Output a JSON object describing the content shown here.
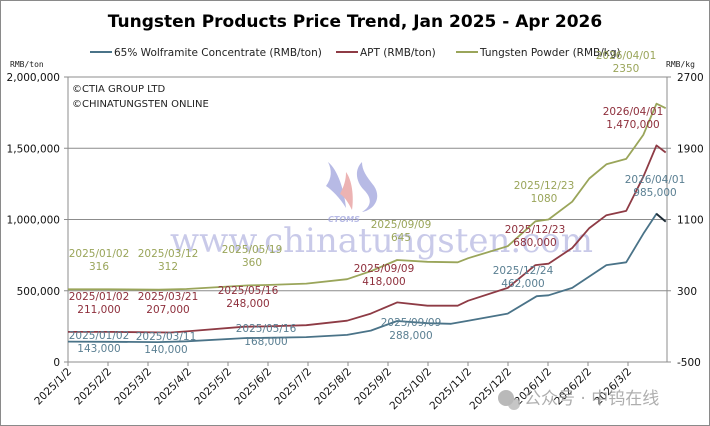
{
  "chart_data": {
    "type": "line",
    "title": "Tungsten Products Price Trend, Jan 2025 - Apr 2026",
    "left_axis": {
      "label": "RMB/ton",
      "ylim": [
        0,
        2000000
      ],
      "ticks": [
        "2,000,000",
        "1,500,000",
        "1,000,000",
        "500,000",
        "0"
      ]
    },
    "right_axis": {
      "label": "RMB/kg",
      "ylim": [
        -500,
        2700
      ],
      "ticks": [
        "2700",
        "1900",
        "1100",
        "300",
        "-500"
      ]
    },
    "x_ticks": [
      "2025/1/2",
      "2025/2/2",
      "2025/3/2",
      "2025/4/2",
      "2025/5/2",
      "2025/6/2",
      "2025/7/2",
      "2025/8/2",
      "2025/9/2",
      "2025/10/2",
      "2025/11/2",
      "2025/12/2",
      "2026/1/2",
      "2026/2/2",
      "2026/3/2"
    ],
    "grid": true,
    "legend_position": "top",
    "legend": [
      {
        "name": "65% Wolframite Concentrate (RMB/ton)",
        "color": "#4a7388",
        "axis": "left"
      },
      {
        "name": "APT (RMB/ton)",
        "color": "#8e3b45",
        "axis": "left"
      },
      {
        "name": "Tungsten Powder (RMB/kg)",
        "color": "#9aa55a",
        "axis": "right"
      }
    ],
    "series": [
      {
        "name": "65% Wolframite Concentrate (RMB/ton)",
        "axis": "left",
        "color": "#4a7388",
        "points": [
          [
            "2025/01/02",
            143000
          ],
          [
            "2025/02/02",
            142000
          ],
          [
            "2025/03/11",
            140000
          ],
          [
            "2025/04/02",
            145000
          ],
          [
            "2025/05/16",
            168000
          ],
          [
            "2025/06/02",
            170000
          ],
          [
            "2025/07/02",
            175000
          ],
          [
            "2025/08/02",
            190000
          ],
          [
            "2025/08/20",
            220000
          ],
          [
            "2025/09/09",
            288000
          ],
          [
            "2025/10/02",
            272000
          ],
          [
            "2025/10/20",
            268000
          ],
          [
            "2025/11/02",
            290000
          ],
          [
            "2025/12/02",
            340000
          ],
          [
            "2025/12/24",
            462000
          ],
          [
            "2026/01/02",
            468000
          ],
          [
            "2026/01/20",
            520000
          ],
          [
            "2026/02/02",
            600000
          ],
          [
            "2026/02/15",
            680000
          ],
          [
            "2026/03/02",
            700000
          ],
          [
            "2026/03/15",
            900000
          ],
          [
            "2026/03/25",
            1040000
          ],
          [
            "2026/04/01",
            985000
          ]
        ]
      },
      {
        "name": "APT (RMB/ton)",
        "axis": "left",
        "color": "#8e3b45",
        "points": [
          [
            "2025/01/02",
            211000
          ],
          [
            "2025/02/02",
            211000
          ],
          [
            "2025/03/21",
            207000
          ],
          [
            "2025/04/02",
            215000
          ],
          [
            "2025/05/16",
            248000
          ],
          [
            "2025/06/02",
            250000
          ],
          [
            "2025/07/02",
            258000
          ],
          [
            "2025/08/02",
            290000
          ],
          [
            "2025/08/20",
            340000
          ],
          [
            "2025/09/09",
            418000
          ],
          [
            "2025/10/02",
            395000
          ],
          [
            "2025/10/25",
            395000
          ],
          [
            "2025/11/02",
            430000
          ],
          [
            "2025/12/02",
            520000
          ],
          [
            "2025/12/23",
            680000
          ],
          [
            "2026/01/02",
            690000
          ],
          [
            "2026/01/20",
            800000
          ],
          [
            "2026/02/02",
            940000
          ],
          [
            "2026/02/15",
            1030000
          ],
          [
            "2026/03/02",
            1060000
          ],
          [
            "2026/03/15",
            1300000
          ],
          [
            "2026/03/25",
            1520000
          ],
          [
            "2026/04/01",
            1470000
          ]
        ]
      },
      {
        "name": "Tungsten Powder (RMB/kg)",
        "axis": "right",
        "color": "#9aa55a",
        "points": [
          [
            "2025/01/02",
            316
          ],
          [
            "2025/02/02",
            316
          ],
          [
            "2025/03/12",
            312
          ],
          [
            "2025/04/02",
            320
          ],
          [
            "2025/05/19",
            360
          ],
          [
            "2025/06/02",
            365
          ],
          [
            "2025/07/02",
            380
          ],
          [
            "2025/08/02",
            430
          ],
          [
            "2025/08/20",
            520
          ],
          [
            "2025/09/09",
            645
          ],
          [
            "2025/10/02",
            625
          ],
          [
            "2025/10/25",
            620
          ],
          [
            "2025/11/02",
            665
          ],
          [
            "2025/12/02",
            800
          ],
          [
            "2025/12/23",
            1080
          ],
          [
            "2026/01/02",
            1100
          ],
          [
            "2026/01/20",
            1300
          ],
          [
            "2026/02/02",
            1560
          ],
          [
            "2026/02/15",
            1720
          ],
          [
            "2026/03/02",
            1780
          ],
          [
            "2026/03/15",
            2050
          ],
          [
            "2026/03/25",
            2400
          ],
          [
            "2026/04/01",
            2350
          ]
        ]
      }
    ],
    "annotations": [
      {
        "series": "Tungsten Powder (RMB/kg)",
        "date": "2025/01/02",
        "value": "316"
      },
      {
        "series": "Tungsten Powder (RMB/kg)",
        "date": "2025/03/12",
        "value": "312"
      },
      {
        "series": "Tungsten Powder (RMB/kg)",
        "date": "2025/05/19",
        "value": "360"
      },
      {
        "series": "Tungsten Powder (RMB/kg)",
        "date": "2025/09/09",
        "value": "645"
      },
      {
        "series": "Tungsten Powder (RMB/kg)",
        "date": "2025/12/23",
        "value": "1080"
      },
      {
        "series": "Tungsten Powder (RMB/kg)",
        "date": "2026/04/01",
        "value": "2350"
      },
      {
        "series": "APT (RMB/ton)",
        "date": "2025/01/02",
        "value": "211,000"
      },
      {
        "series": "APT (RMB/ton)",
        "date": "2025/03/21",
        "value": "207,000"
      },
      {
        "series": "APT (RMB/ton)",
        "date": "2025/05/16",
        "value": "248,000"
      },
      {
        "series": "APT (RMB/ton)",
        "date": "2025/09/09",
        "value": "418,000"
      },
      {
        "series": "APT (RMB/ton)",
        "date": "2025/12/23",
        "value": "680,000"
      },
      {
        "series": "APT (RMB/ton)",
        "date": "2026/04/01",
        "value": "1,470,000"
      },
      {
        "series": "65% Wolframite Concentrate (RMB/ton)",
        "date": "2025/01/02",
        "value": "143,000"
      },
      {
        "series": "65% Wolframite Concentrate (RMB/ton)",
        "date": "2025/03/11",
        "value": "140,000"
      },
      {
        "series": "65% Wolframite Concentrate (RMB/ton)",
        "date": "2025/05/16",
        "value": "168,000"
      },
      {
        "series": "65% Wolframite Concentrate (RMB/ton)",
        "date": "2025/09/09",
        "value": "288,000"
      },
      {
        "series": "65% Wolframite Concentrate (RMB/ton)",
        "date": "2025/12/24",
        "value": "462,000"
      },
      {
        "series": "65% Wolframite Concentrate (RMB/ton)",
        "date": "2026/04/01",
        "value": "985,000"
      }
    ]
  },
  "copyright": [
    "©CTIA GROUP LTD",
    "©CHINATUNGSTEN ONLINE"
  ],
  "watermark": {
    "logo_text": "CTOMS",
    "url_text": "www.chinatungsten.com",
    "wechat_text": "公众号 · 中钨在线"
  },
  "labels": {
    "title": "Tungsten Products Price Trend, Jan 2025 - Apr 2026",
    "unit_left": "RMB/ton",
    "unit_right": "RMB/kg",
    "legend": [
      "65% Wolframite Concentrate (RMB/ton)",
      "APT (RMB/ton)",
      "Tungsten Powder (RMB/kg)"
    ]
  }
}
